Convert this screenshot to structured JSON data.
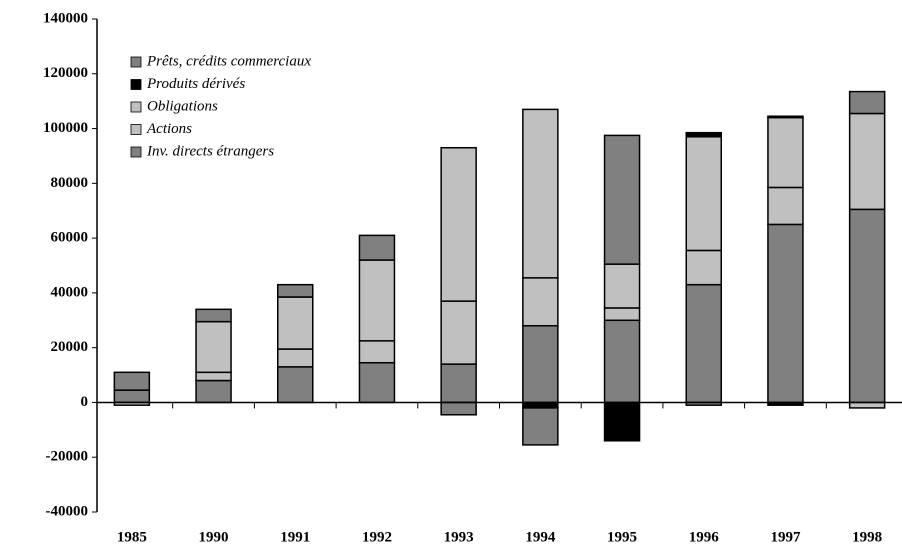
{
  "chart_data": {
    "type": "stacked_bar",
    "categories": [
      "1985",
      "1990",
      "1991",
      "1992",
      "1993",
      "1994",
      "1995",
      "1996",
      "1997",
      "1998"
    ],
    "series": [
      {
        "name": "Inv. directs étrangers",
        "color": "#808080",
        "values": [
          4500,
          8000,
          13000,
          14500,
          14000,
          28000,
          30000,
          43000,
          65000,
          70500
        ]
      },
      {
        "name": "Actions",
        "color": "#c0c0c0",
        "values": [
          0,
          3000,
          6500,
          8000,
          23000,
          17500,
          4500,
          12500,
          13500,
          35000
        ]
      },
      {
        "name": "Obligations",
        "color": "#c0c0c0",
        "values": [
          -1000,
          18500,
          19000,
          29500,
          56000,
          61500,
          16000,
          41500,
          25500,
          -2000
        ]
      },
      {
        "name": "Produits dérivés",
        "color": "#000000",
        "values": [
          0,
          0,
          0,
          0,
          0,
          -2000,
          -14000,
          1500,
          -1000,
          0
        ]
      },
      {
        "name": "Prêts, crédits commerciaux",
        "color": "#808080",
        "values": [
          6500,
          4500,
          4500,
          9000,
          -4500,
          -13500,
          47000,
          -1000,
          500,
          8000
        ]
      }
    ],
    "ylim": [
      -40000,
      140000
    ],
    "yticks": [
      -40000,
      -20000,
      0,
      20000,
      40000,
      60000,
      80000,
      100000,
      120000,
      140000
    ],
    "legend": "upper left"
  }
}
